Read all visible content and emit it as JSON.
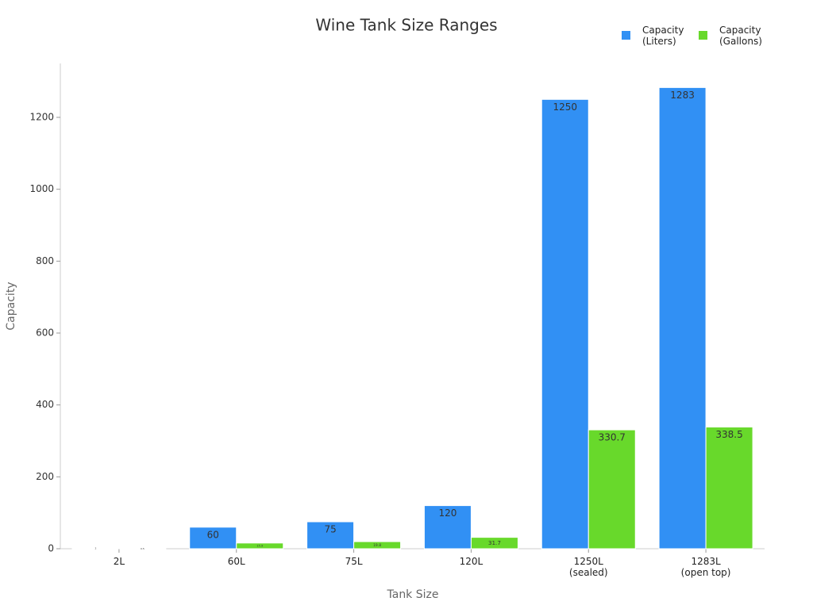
{
  "chart_data": {
    "type": "bar",
    "title": "Wine Tank Size Ranges",
    "x_label": "Tank Size",
    "y_label": "Capacity",
    "categories": [
      "2L",
      "60L",
      "75L",
      "120L",
      "1250L\n(sealed)",
      "1283L\n(open top)"
    ],
    "series": [
      {
        "name": "Capacity\n(Liters)",
        "color": "#3190f4",
        "values": [
          2,
          60,
          75,
          120,
          1250,
          1283
        ]
      },
      {
        "name": "Capacity\n(Gallons)",
        "color": "#68d92b",
        "values": [
          0.5,
          15.9,
          19.8,
          31.7,
          330.7,
          338.5
        ]
      }
    ],
    "ylim": [
      0,
      1350
    ],
    "yticks": [
      0,
      200,
      400,
      600,
      800,
      1000,
      1200
    ],
    "grid": false,
    "legend": "top-right"
  }
}
